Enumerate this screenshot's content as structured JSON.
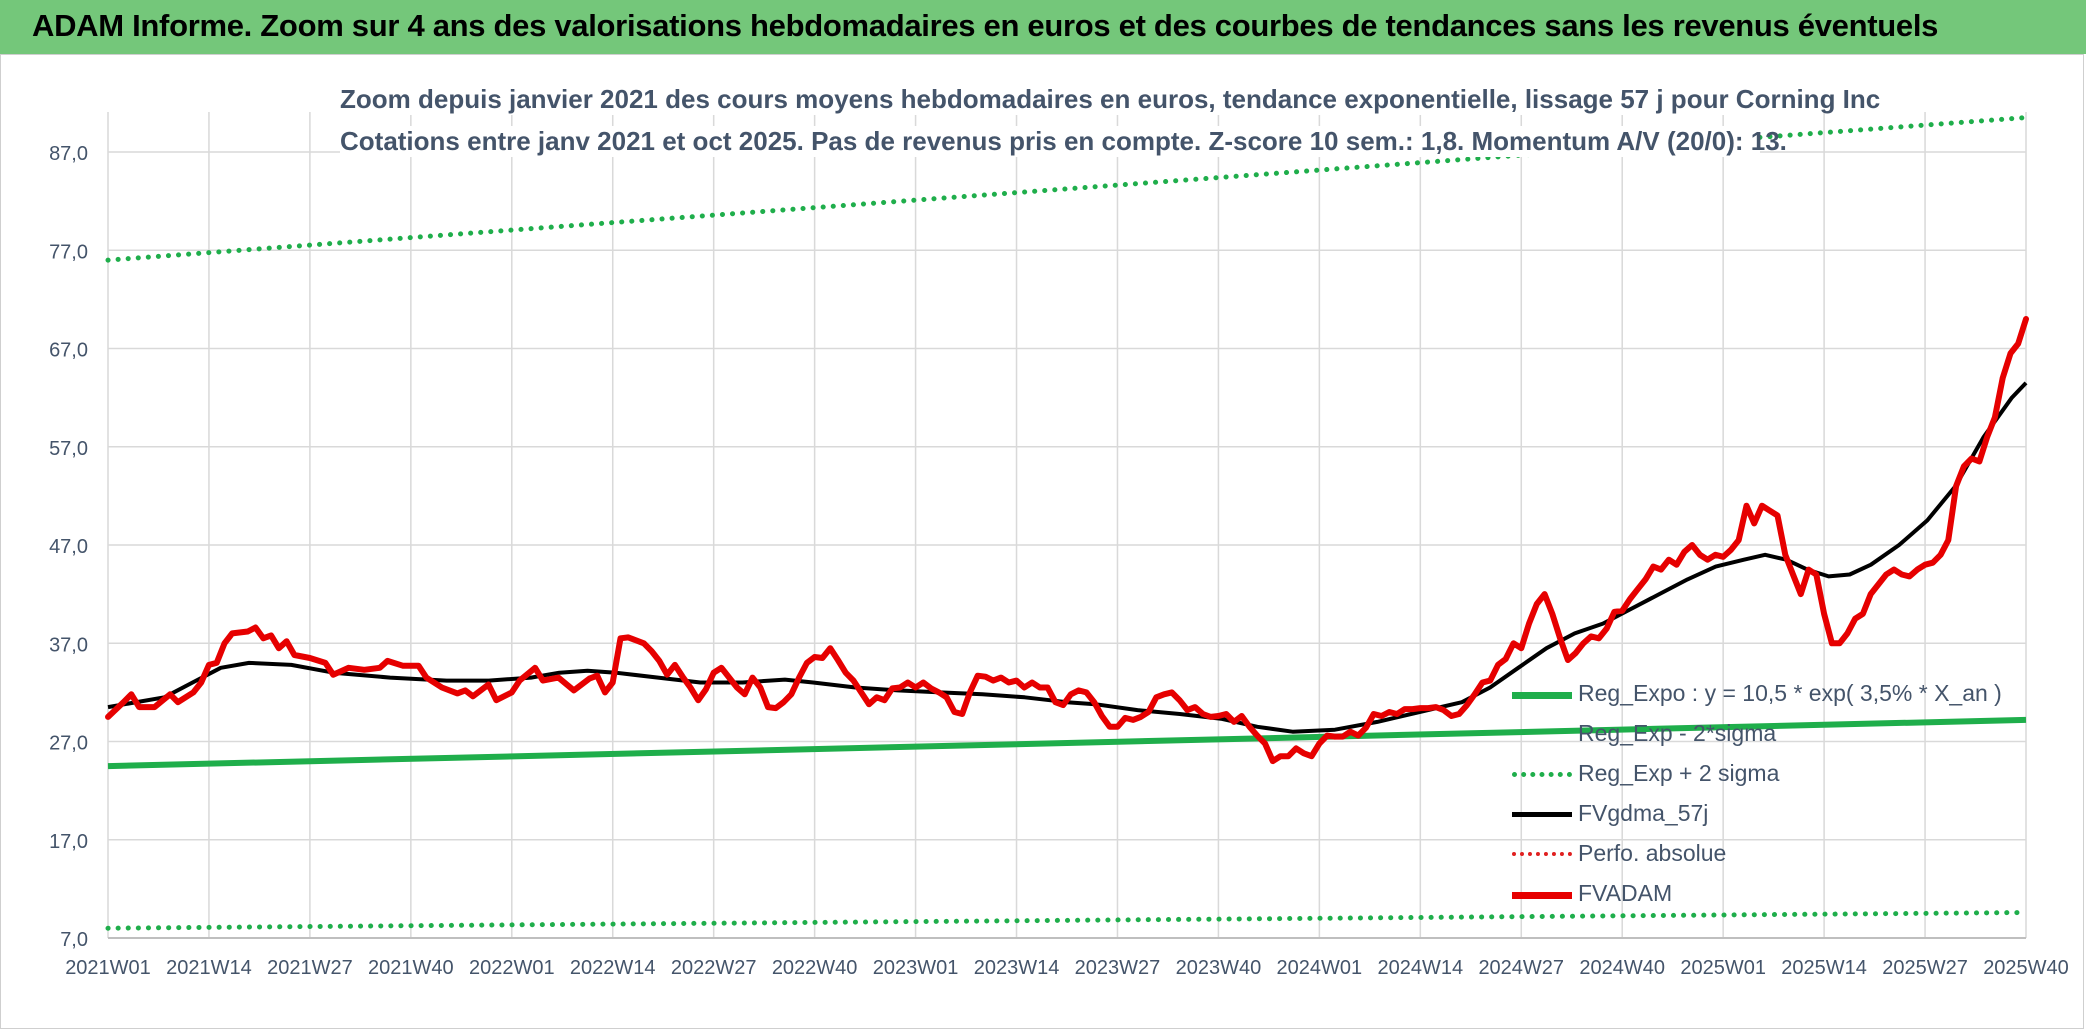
{
  "banner_title": "ADAM Informe. Zoom sur 4 ans des valorisations hebdomadaires en euros et des courbes de tendances sans les revenus éventuels",
  "subtitle_line1": "Zoom depuis janvier 2021 des cours moyens hebdomadaires en euros, tendance exponentielle, lissage 57 j pour Corning Inc",
  "subtitle_line2": "Cotations entre janv 2021 et oct 2025. Pas de revenus pris en compte. Z-score 10 sem.: 1,8. Momentum A/V (20/0): 13.",
  "colors": {
    "banner": "#74c77a",
    "reg_expo": "#1fae4b",
    "fvgdma": "#000000",
    "fvadam": "#e60000",
    "perfo": "#e02020",
    "grid": "#d9d9d9",
    "text": "#44546a"
  },
  "chart_data": {
    "type": "line",
    "y_ticks": [
      "7,0",
      "17,0",
      "27,0",
      "37,0",
      "47,0",
      "57,0",
      "67,0",
      "77,0",
      "87,0"
    ],
    "ylim": [
      7,
      87
    ],
    "x_ticks": [
      "2021W01",
      "2021W14",
      "2021W27",
      "2021W40",
      "2022W01",
      "2022W14",
      "2022W27",
      "2022W40",
      "2023W01",
      "2023W14",
      "2023W27",
      "2023W40",
      "2024W01",
      "2024W14",
      "2024W27",
      "2024W40",
      "2025W01",
      "2025W14",
      "2025W27",
      "2025W40"
    ],
    "legend_position": "lower-right",
    "grid": true,
    "series": [
      {
        "name": "Reg_Expo : y = 10,5 * exp( 3,5% *  X_an )",
        "style": "solid-green",
        "points": [
          [
            0,
            24.5
          ],
          [
            247,
            29.2
          ]
        ]
      },
      {
        "name": "Reg_Exp - 2*sigma",
        "style": "dotted-green",
        "points": [
          [
            0,
            8.0
          ],
          [
            247,
            9.6
          ]
        ]
      },
      {
        "name": "Reg_Exp + 2 sigma",
        "style": "dotted-green",
        "points": [
          [
            0,
            76.0
          ],
          [
            247,
            90.5
          ]
        ]
      },
      {
        "name": "FVgdma_57j",
        "style": "solid-black",
        "points": [
          [
            0,
            30.5
          ],
          [
            8,
            31.5
          ],
          [
            12,
            33
          ],
          [
            16,
            34.5
          ],
          [
            20,
            35
          ],
          [
            26,
            34.8
          ],
          [
            32,
            34
          ],
          [
            40,
            33.5
          ],
          [
            48,
            33.2
          ],
          [
            54,
            33.2
          ],
          [
            60,
            33.5
          ],
          [
            64,
            34
          ],
          [
            68,
            34.2
          ],
          [
            72,
            34
          ],
          [
            78,
            33.5
          ],
          [
            84,
            33
          ],
          [
            90,
            33
          ],
          [
            96,
            33.3
          ],
          [
            100,
            33
          ],
          [
            106,
            32.5
          ],
          [
            112,
            32.2
          ],
          [
            118,
            32
          ],
          [
            124,
            31.8
          ],
          [
            130,
            31.5
          ],
          [
            136,
            31
          ],
          [
            140,
            30.8
          ],
          [
            146,
            30.2
          ],
          [
            152,
            29.8
          ],
          [
            158,
            29.3
          ],
          [
            163,
            28.5
          ],
          [
            168,
            28
          ],
          [
            174,
            28.2
          ],
          [
            180,
            29
          ],
          [
            186,
            30
          ],
          [
            192,
            31
          ],
          [
            196,
            32.5
          ],
          [
            200,
            34.5
          ],
          [
            204,
            36.5
          ],
          [
            208,
            38
          ],
          [
            212,
            39
          ],
          [
            216,
            40.5
          ],
          [
            220,
            42
          ],
          [
            224,
            43.5
          ],
          [
            228,
            44.8
          ],
          [
            232,
            45.5
          ],
          [
            235,
            46
          ],
          [
            238,
            45.5
          ],
          [
            241,
            44.5
          ],
          [
            244,
            43.8
          ],
          [
            247,
            44
          ],
          [
            250,
            45
          ],
          [
            254,
            47
          ],
          [
            258,
            49.5
          ],
          [
            262,
            53
          ],
          [
            266,
            58
          ],
          [
            270,
            62
          ],
          [
            272,
            63.5
          ]
        ]
      },
      {
        "name": "Perfo. absolue",
        "style": "dotted-red",
        "points": []
      },
      {
        "name": "FVADAM",
        "style": "solid-red",
        "points": [
          [
            0,
            29.5
          ],
          [
            2,
            31
          ],
          [
            3,
            31.8
          ],
          [
            4,
            30.5
          ],
          [
            6,
            30.5
          ],
          [
            8,
            31.8
          ],
          [
            9,
            31
          ],
          [
            11,
            32
          ],
          [
            12,
            33
          ],
          [
            13,
            34.8
          ],
          [
            14,
            35
          ],
          [
            15,
            37
          ],
          [
            16,
            38
          ],
          [
            18,
            38.2
          ],
          [
            19,
            38.6
          ],
          [
            20,
            37.5
          ],
          [
            21,
            37.8
          ],
          [
            22,
            36.5
          ],
          [
            23,
            37.2
          ],
          [
            24,
            35.8
          ],
          [
            26,
            35.5
          ],
          [
            28,
            35
          ],
          [
            29,
            33.8
          ],
          [
            31,
            34.5
          ],
          [
            33,
            34.3
          ],
          [
            35,
            34.5
          ],
          [
            36,
            35.2
          ],
          [
            38,
            34.7
          ],
          [
            40,
            34.7
          ],
          [
            41,
            33.5
          ],
          [
            43,
            32.5
          ],
          [
            45,
            31.9
          ],
          [
            46,
            32.2
          ],
          [
            47,
            31.6
          ],
          [
            49,
            32.8
          ],
          [
            50,
            31.2
          ],
          [
            52,
            32
          ],
          [
            53,
            33.2
          ],
          [
            55,
            34.5
          ],
          [
            56,
            33.2
          ],
          [
            58,
            33.5
          ],
          [
            60,
            32.2
          ],
          [
            62,
            33.4
          ],
          [
            63,
            33.7
          ],
          [
            64,
            32
          ],
          [
            65,
            33
          ],
          [
            66,
            37.5
          ],
          [
            67,
            37.6
          ],
          [
            69,
            37
          ],
          [
            70,
            36.2
          ],
          [
            71,
            35.2
          ],
          [
            72,
            33.8
          ],
          [
            73,
            34.8
          ],
          [
            74,
            33.6
          ],
          [
            75,
            32.5
          ],
          [
            76,
            31.2
          ],
          [
            77,
            32.3
          ],
          [
            78,
            34
          ],
          [
            79,
            34.5
          ],
          [
            80,
            33.5
          ],
          [
            81,
            32.5
          ],
          [
            82,
            31.8
          ],
          [
            83,
            33.5
          ],
          [
            84,
            32.5
          ],
          [
            85,
            30.5
          ],
          [
            86,
            30.4
          ],
          [
            87,
            31
          ],
          [
            88,
            31.8
          ],
          [
            89,
            33.5
          ],
          [
            90,
            35
          ],
          [
            91,
            35.6
          ],
          [
            92,
            35.5
          ],
          [
            93,
            36.5
          ],
          [
            94,
            35.3
          ],
          [
            95,
            34
          ],
          [
            96,
            33.2
          ],
          [
            97,
            32
          ],
          [
            98,
            30.8
          ],
          [
            99,
            31.5
          ],
          [
            100,
            31.2
          ],
          [
            101,
            32.4
          ],
          [
            102,
            32.5
          ],
          [
            103,
            33
          ],
          [
            104,
            32.5
          ],
          [
            105,
            33
          ],
          [
            106,
            32.4
          ],
          [
            107,
            32
          ],
          [
            108,
            31.5
          ],
          [
            109,
            30
          ],
          [
            110,
            29.8
          ],
          [
            111,
            32
          ],
          [
            112,
            33.7
          ],
          [
            113,
            33.6
          ],
          [
            114,
            33.2
          ],
          [
            115,
            33.5
          ],
          [
            116,
            33
          ],
          [
            117,
            33.2
          ],
          [
            118,
            32.5
          ],
          [
            119,
            33
          ],
          [
            120,
            32.5
          ],
          [
            121,
            32.5
          ],
          [
            122,
            31
          ],
          [
            123,
            30.7
          ],
          [
            124,
            31.8
          ],
          [
            125,
            32.2
          ],
          [
            126,
            32
          ],
          [
            127,
            31
          ],
          [
            128,
            29.6
          ],
          [
            129,
            28.5
          ],
          [
            130,
            28.5
          ],
          [
            131,
            29.4
          ],
          [
            132,
            29.2
          ],
          [
            133,
            29.5
          ],
          [
            134,
            30
          ],
          [
            135,
            31.5
          ],
          [
            136,
            31.8
          ],
          [
            137,
            32
          ],
          [
            138,
            31.2
          ],
          [
            139,
            30.2
          ],
          [
            140,
            30.5
          ],
          [
            141,
            29.8
          ],
          [
            142,
            29.5
          ],
          [
            143,
            29.6
          ],
          [
            144,
            29.8
          ],
          [
            145,
            29
          ],
          [
            146,
            29.6
          ],
          [
            147,
            28.5
          ],
          [
            148,
            27.6
          ],
          [
            149,
            26.8
          ],
          [
            150,
            25
          ],
          [
            151,
            25.5
          ],
          [
            152,
            25.5
          ],
          [
            153,
            26.3
          ],
          [
            154,
            25.8
          ],
          [
            155,
            25.5
          ],
          [
            156,
            26.8
          ],
          [
            157,
            27.6
          ],
          [
            158,
            27.5
          ],
          [
            159,
            27.5
          ],
          [
            160,
            28
          ],
          [
            161,
            27.6
          ],
          [
            162,
            28.4
          ],
          [
            163,
            29.8
          ],
          [
            164,
            29.6
          ],
          [
            165,
            30
          ],
          [
            166,
            29.8
          ],
          [
            167,
            30.3
          ],
          [
            168,
            30.3
          ],
          [
            169,
            30.4
          ],
          [
            170,
            30.4
          ],
          [
            171,
            30.5
          ],
          [
            172,
            30.2
          ],
          [
            173,
            29.6
          ],
          [
            174,
            29.8
          ],
          [
            175,
            30.7
          ],
          [
            176,
            31.8
          ],
          [
            177,
            33
          ],
          [
            178,
            33.2
          ],
          [
            179,
            34.8
          ],
          [
            180,
            35.4
          ],
          [
            181,
            37
          ],
          [
            182,
            36.5
          ],
          [
            183,
            39
          ],
          [
            184,
            41
          ],
          [
            185,
            42
          ],
          [
            186,
            40
          ],
          [
            187,
            37.5
          ],
          [
            188,
            35.3
          ],
          [
            189,
            36
          ],
          [
            190,
            37
          ],
          [
            191,
            37.7
          ],
          [
            192,
            37.5
          ],
          [
            193,
            38.5
          ],
          [
            194,
            40.2
          ],
          [
            195,
            40.3
          ],
          [
            196,
            41.5
          ],
          [
            197,
            42.5
          ],
          [
            198,
            43.5
          ],
          [
            199,
            44.8
          ],
          [
            200,
            44.5
          ],
          [
            201,
            45.5
          ],
          [
            202,
            45
          ],
          [
            203,
            46.3
          ],
          [
            204,
            47
          ],
          [
            205,
            46
          ],
          [
            206,
            45.5
          ],
          [
            207,
            46
          ],
          [
            208,
            45.8
          ],
          [
            209,
            46.5
          ],
          [
            210,
            47.5
          ],
          [
            211,
            51
          ],
          [
            212,
            49.2
          ],
          [
            213,
            51
          ],
          [
            214,
            50.5
          ],
          [
            215,
            50
          ],
          [
            216,
            46
          ],
          [
            217,
            44
          ],
          [
            218,
            42
          ],
          [
            219,
            44.5
          ],
          [
            220,
            44
          ],
          [
            221,
            40
          ],
          [
            222,
            37
          ],
          [
            223,
            37
          ],
          [
            224,
            38
          ],
          [
            225,
            39.5
          ],
          [
            226,
            40
          ],
          [
            227,
            42
          ],
          [
            228,
            43
          ],
          [
            229,
            44
          ],
          [
            230,
            44.5
          ],
          [
            231,
            44
          ],
          [
            232,
            43.8
          ],
          [
            233,
            44.5
          ],
          [
            234,
            45
          ],
          [
            235,
            45.2
          ],
          [
            236,
            46
          ],
          [
            237,
            47.5
          ],
          [
            238,
            53
          ],
          [
            239,
            55
          ],
          [
            240,
            55.8
          ],
          [
            241,
            55.5
          ],
          [
            242,
            58
          ],
          [
            243,
            60
          ],
          [
            244,
            64
          ],
          [
            245,
            66.5
          ],
          [
            246,
            67.5
          ],
          [
            247,
            70
          ]
        ]
      }
    ]
  }
}
